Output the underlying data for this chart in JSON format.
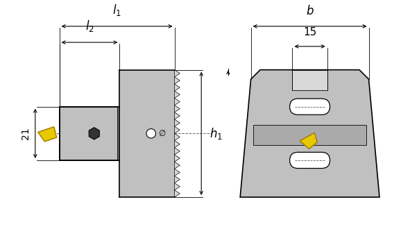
{
  "bg_color": "#ffffff",
  "gray_body": "#c0c0c0",
  "gray_dark": "#888888",
  "gray_light": "#d8d8d8",
  "gray_mid": "#aaaaaa",
  "gray_inner": "#b0b0b0",
  "yellow": "#e8c800",
  "yellow_edge": "#a07800",
  "line_color": "#000000",
  "lw_main": 1.2,
  "lw_dim": 0.8,
  "lw_thin": 0.6
}
